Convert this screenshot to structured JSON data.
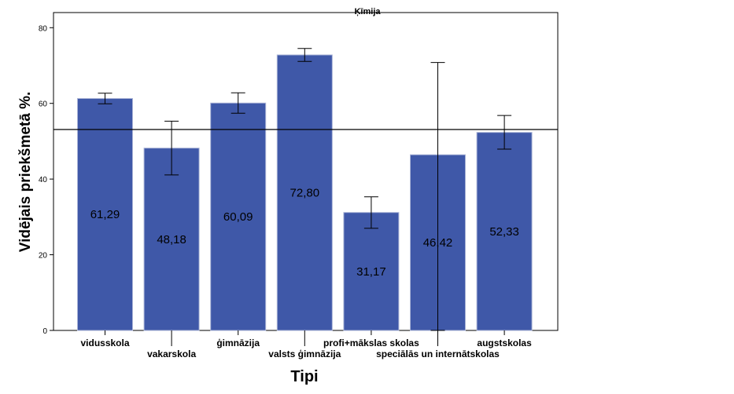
{
  "chart_data": {
    "type": "bar",
    "title": "Ķīmija",
    "xlabel": "Tipi",
    "ylabel": "Vidējais priekšmetā %.",
    "ylim": [
      0,
      80
    ],
    "yticks": [
      "0",
      "20",
      "40",
      "60",
      "80"
    ],
    "categories": [
      "vidusskola",
      "vakarskola",
      "ģimnāzija",
      "valsts ģimnāzija",
      "profi+mākslas skolas",
      "speciālās un internātskolas",
      "augstskolas"
    ],
    "values": [
      61.29,
      48.18,
      60.09,
      72.8,
      31.17,
      46.42,
      52.33
    ],
    "value_labels": [
      "61,29",
      "48,18",
      "60,09",
      "72,80",
      "31,17",
      "46,42",
      "52,33"
    ],
    "error_low": [
      59.9,
      41.1,
      57.4,
      71.1,
      27.0,
      0,
      47.9
    ],
    "error_high": [
      62.7,
      55.3,
      62.8,
      74.5,
      35.3,
      70.8,
      56.8
    ],
    "reference_line": 53.1,
    "bar_color": "#3f58a8",
    "bar_edge_color": "#a9b3d6"
  }
}
